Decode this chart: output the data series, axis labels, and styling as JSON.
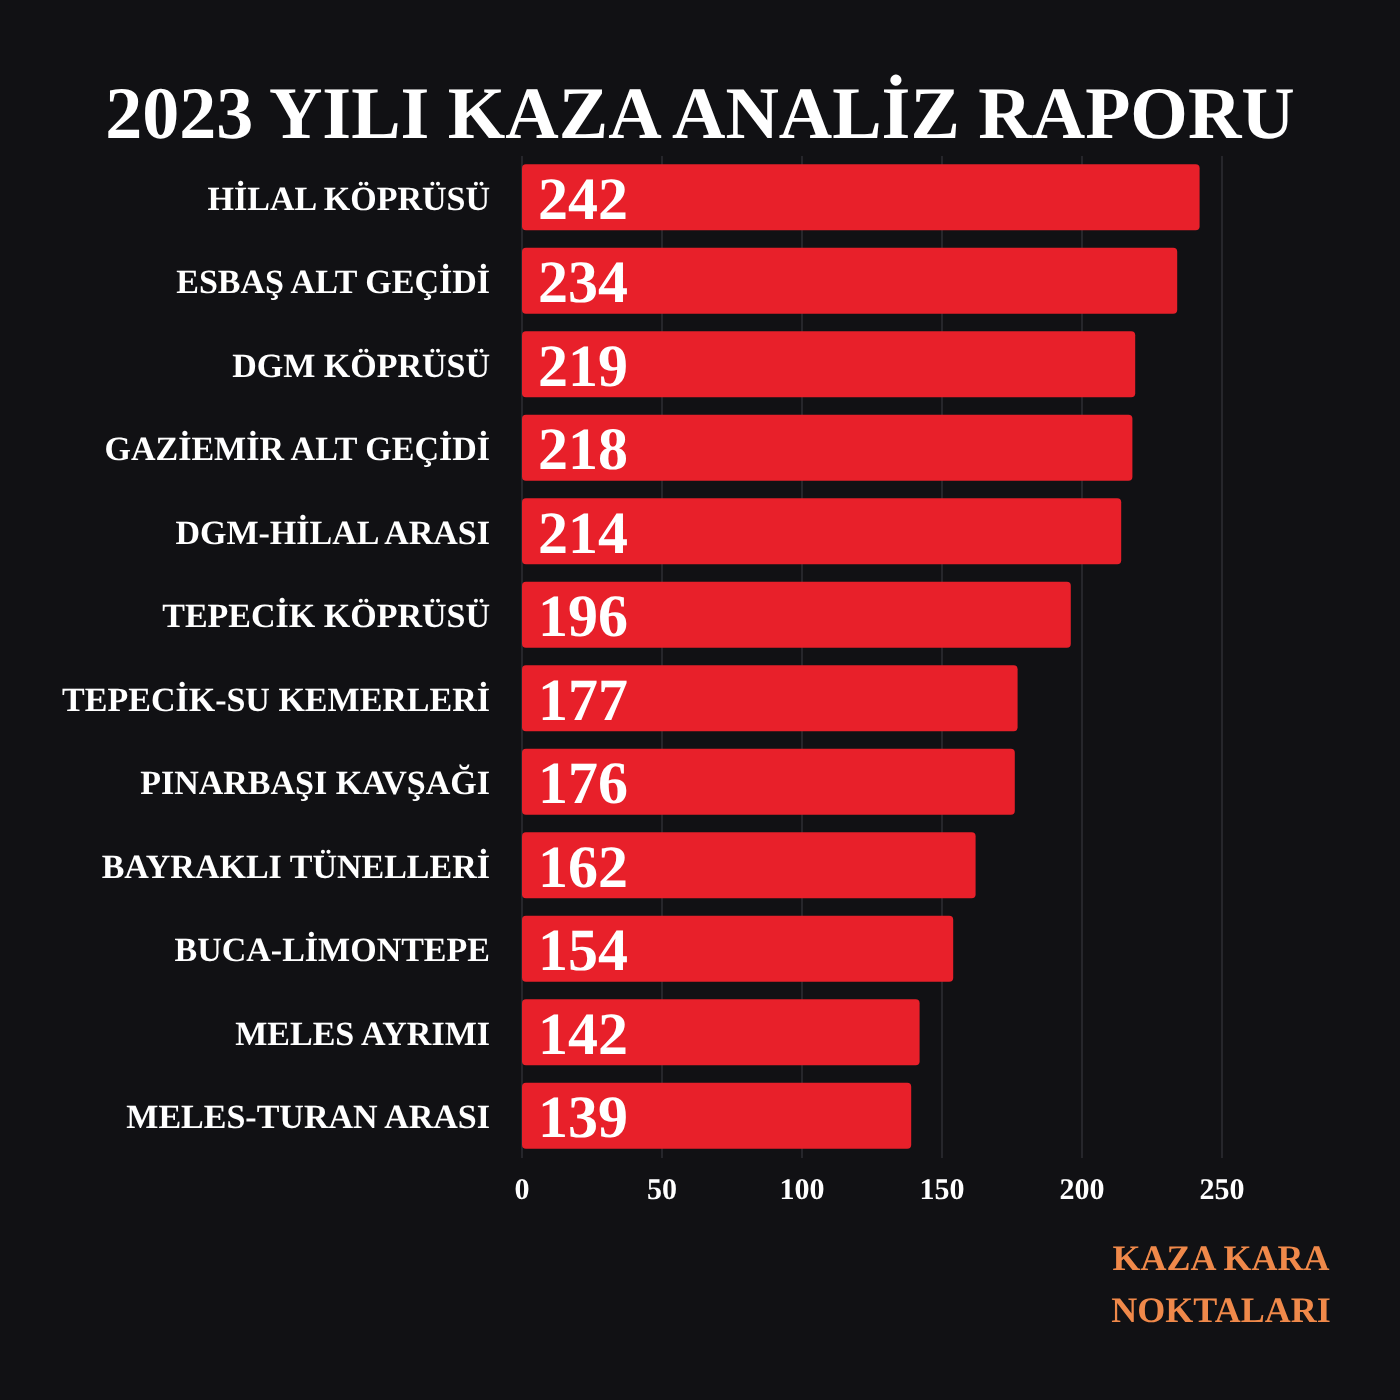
{
  "chart_data": {
    "type": "bar",
    "orientation": "horizontal",
    "title": "2023 YILI KAZA ANALİZ RAPORU",
    "categories": [
      "HİLAL KÖPRÜSÜ",
      "ESBAŞ ALT GEÇİDİ",
      "DGM KÖPRÜSÜ",
      "GAZİEMİR ALT GEÇİDİ",
      "DGM-HİLAL ARASI",
      "TEPECİK KÖPRÜSÜ",
      "TEPECİK-SU KEMERLERİ",
      "PINARBAŞI KAVŞAĞI",
      "BAYRAKLI TÜNELLERİ",
      "BUCA-LİMONTEPE",
      "MELES AYRIMI",
      "MELES-TURAN ARASI"
    ],
    "values": [
      242,
      234,
      219,
      218,
      214,
      196,
      177,
      176,
      162,
      154,
      142,
      139
    ],
    "color": "#e8202a",
    "xlim": [
      0,
      250
    ],
    "xticks": [
      0,
      50,
      100,
      150,
      200,
      250
    ],
    "grid": "x",
    "data_labels": true,
    "annotations": [
      "KAZA KARA NOKTALARI"
    ]
  }
}
